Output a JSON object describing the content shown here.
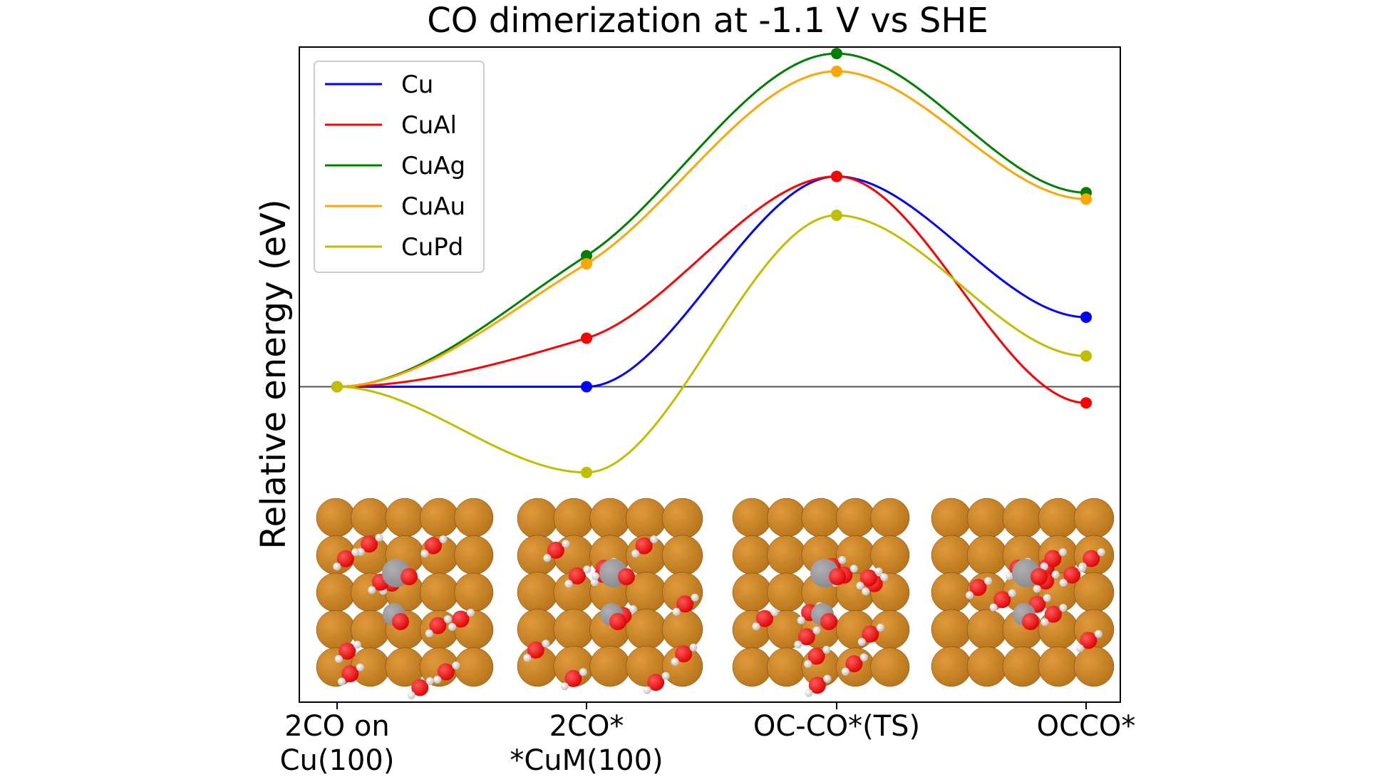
{
  "chart_data": {
    "type": "line",
    "title": "CO dimerization at -1.1 V vs SHE",
    "xlabel": "",
    "ylabel": "Relative energy (eV)",
    "categories": [
      [
        "2CO on",
        "Cu(100)"
      ],
      [
        "2CO*",
        "*CuM(100)"
      ],
      [
        "OC-CO*(TS)"
      ],
      [
        "OCCO*"
      ]
    ],
    "y_ticks_shown": false,
    "reference_line": 0,
    "ylim": [
      -1.95,
      2.1
    ],
    "legend_position": "top-left",
    "series": [
      {
        "name": "Cu",
        "color": "#0000ff",
        "values": [
          0,
          0,
          1.3,
          0.43
        ]
      },
      {
        "name": "CuAl",
        "color": "#ff0000",
        "values": [
          0,
          0.3,
          1.3,
          -0.1
        ]
      },
      {
        "name": "CuAg",
        "color": "#008000",
        "values": [
          0,
          0.81,
          2.06,
          1.2
        ]
      },
      {
        "name": "CuAu",
        "color": "#ffa500",
        "values": [
          0,
          0.76,
          1.95,
          1.16
        ]
      },
      {
        "name": "CuPd",
        "color": "#bfbf00",
        "values": [
          0,
          -0.53,
          1.06,
          0.19
        ]
      }
    ],
    "structure_images": [
      {
        "label": "2CO on Cu(100)",
        "icon": "surface-structure-icon"
      },
      {
        "label": "2CO* *CuM(100)",
        "icon": "surface-structure-icon"
      },
      {
        "label": "OC-CO*(TS)",
        "icon": "surface-structure-icon"
      },
      {
        "label": "OCCO*",
        "icon": "surface-structure-icon"
      }
    ],
    "structure_colors": {
      "metal": "#b8741a",
      "metal_highlight": "#e09a3c",
      "oxygen": "#dd0000",
      "hydrogen": "#f2f2f2",
      "carbon": "#8a8a8e"
    }
  }
}
